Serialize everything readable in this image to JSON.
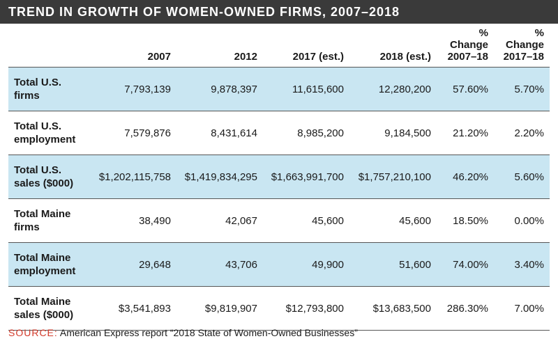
{
  "title": "TREND IN GROWTH OF WOMEN-OWNED FIRMS, 2007–2018",
  "source_label": "SOURCE:",
  "source_text": "American Express report “2018 State of Women-Owned Businesses”",
  "colors": {
    "shade": "#c9e6f2",
    "title_bg": "#3a3a3a",
    "source_accent": "#d23a2a"
  },
  "chart_data": {
    "type": "table",
    "title": "TREND IN GROWTH OF WOMEN-OWNED FIRMS, 2007–2018",
    "columns": [
      "",
      "2007",
      "2012",
      "2017 (est.)",
      "2018 (est.)",
      "% Change 2007–18",
      "% Change 2017–18"
    ],
    "rows": [
      {
        "label_line1": "Total U.S.",
        "label_line2": "firms",
        "cells": [
          "7,793,139",
          "9,878,397",
          "11,615,600",
          "12,280,200",
          "57.60%",
          "5.70%"
        ],
        "shaded": true
      },
      {
        "label_line1": "Total U.S.",
        "label_line2": "employment",
        "cells": [
          "7,579,876",
          "8,431,614",
          "8,985,200",
          "9,184,500",
          "21.20%",
          "2.20%"
        ],
        "shaded": false
      },
      {
        "label_line1": "Total U.S.",
        "label_line2": "sales ($000)",
        "cells": [
          "$1,202,115,758",
          "$1,419,834,295",
          "$1,663,991,700",
          "$1,757,210,100",
          "46.20%",
          "5.60%"
        ],
        "shaded": true
      },
      {
        "label_line1": "Total Maine",
        "label_line2": "firms",
        "cells": [
          "38,490",
          "42,067",
          "45,600",
          "45,600",
          "18.50%",
          "0.00%"
        ],
        "shaded": false
      },
      {
        "label_line1": "Total Maine",
        "label_line2": "employment",
        "cells": [
          "29,648",
          "43,706",
          "49,900",
          "51,600",
          "74.00%",
          "3.40%"
        ],
        "shaded": true
      },
      {
        "label_line1": "Total Maine",
        "label_line2": "sales ($000)",
        "cells": [
          "$3,541,893",
          "$9,819,907",
          "$12,793,800",
          "$13,683,500",
          "286.30%",
          "7.00%"
        ],
        "shaded": false
      }
    ],
    "header_lines": [
      [
        "",
        ""
      ],
      [
        "",
        "2007"
      ],
      [
        "",
        "2012"
      ],
      [
        "",
        "2017 (est.)"
      ],
      [
        "",
        "2018 (est.)"
      ],
      [
        "% Change",
        "2007–18"
      ],
      [
        "% Change",
        "2017–18"
      ]
    ]
  }
}
